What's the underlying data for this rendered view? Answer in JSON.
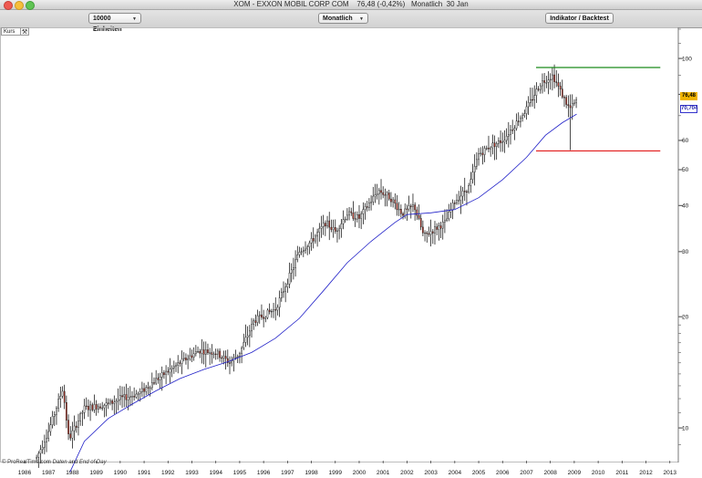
{
  "window": {
    "title": "XOM - EXXON MOBIL CORP COM    76,48 (-0,42%)   Monatlich  30 Jan",
    "traffic_lights": {
      "close": "#ee5a52",
      "minimize": "#f6be3b",
      "zoom": "#60c454"
    }
  },
  "toolbar": {
    "units_select": "10000 Einheiten",
    "period_select": "Monatlich",
    "indicator_button": "Indikator / Backtest"
  },
  "panel": {
    "label": "Kurs",
    "settings_icon": "wrench-icon",
    "footer_source": "© ProRealTime.com",
    "footer_note": "Daten and End of Day"
  },
  "chart_data": {
    "type": "candlestick",
    "symbol": "XOM",
    "period": "Monatlich",
    "y_scale": "log",
    "ylim": [
      8.2,
      120
    ],
    "xlim": [
      1986.0,
      2013.2
    ],
    "y_ticks": [
      10,
      20,
      30,
      40,
      50,
      60,
      80,
      100
    ],
    "x_ticks": [
      "1986",
      "1987",
      "1988",
      "1989",
      "1990",
      "1991",
      "1992",
      "1993",
      "1994",
      "1995",
      "1996",
      "1997",
      "1998",
      "1999",
      "2000",
      "2001",
      "2002",
      "2003",
      "2004",
      "2005",
      "2006",
      "2007",
      "2008",
      "2009",
      "2010",
      "2011",
      "2012",
      "2013"
    ],
    "colors": {
      "up": "#ffffff",
      "down": "#c0392b",
      "wick": "#000000",
      "moving_average": "#2020c8",
      "resistance": "#1a8a1a",
      "support": "#e21a1a",
      "last_price_badge": "#f0b400"
    },
    "price_anchors": [
      [
        1986.5,
        8.3
      ],
      [
        1987.0,
        9.8
      ],
      [
        1987.6,
        12.8
      ],
      [
        1987.85,
        9.3
      ],
      [
        1988.5,
        11.3
      ],
      [
        1989.5,
        11.6
      ],
      [
        1990.0,
        12.0
      ],
      [
        1990.8,
        12.4
      ],
      [
        1991.5,
        13.5
      ],
      [
        1992.5,
        15.0
      ],
      [
        1993.3,
        16.2
      ],
      [
        1994.0,
        16.0
      ],
      [
        1994.6,
        15.0
      ],
      [
        1995.0,
        16.0
      ],
      [
        1995.6,
        19.5
      ],
      [
        1996.5,
        21.0
      ],
      [
        1997.0,
        25.0
      ],
      [
        1997.5,
        30.0
      ],
      [
        1998.0,
        32.0
      ],
      [
        1998.6,
        36.0
      ],
      [
        1999.0,
        34.0
      ],
      [
        1999.5,
        38.0
      ],
      [
        2000.0,
        37.0
      ],
      [
        2000.8,
        44.0
      ],
      [
        2001.3,
        42.0
      ],
      [
        2001.8,
        38.0
      ],
      [
        2002.3,
        40.0
      ],
      [
        2002.7,
        33.0
      ],
      [
        2003.0,
        34.0
      ],
      [
        2003.6,
        36.0
      ],
      [
        2004.0,
        41.0
      ],
      [
        2004.6,
        45.0
      ],
      [
        2005.0,
        55.0
      ],
      [
        2005.5,
        58.0
      ],
      [
        2006.0,
        60.0
      ],
      [
        2006.5,
        66.0
      ],
      [
        2007.0,
        73.0
      ],
      [
        2007.6,
        86.0
      ],
      [
        2008.1,
        90.0
      ],
      [
        2008.4,
        82.0
      ],
      [
        2008.8,
        73.0
      ],
      [
        2009.1,
        76.5
      ]
    ],
    "candle_spike": {
      "date": 2008.8,
      "low": 56.5
    },
    "moving_average": [
      [
        1987.9,
        7.6
      ],
      [
        1988.5,
        9.2
      ],
      [
        1989.5,
        10.6
      ],
      [
        1990.5,
        11.6
      ],
      [
        1991.5,
        12.6
      ],
      [
        1992.5,
        13.6
      ],
      [
        1993.5,
        14.4
      ],
      [
        1994.5,
        15.1
      ],
      [
        1995.5,
        16.0
      ],
      [
        1996.5,
        17.5
      ],
      [
        1997.5,
        19.8
      ],
      [
        1998.5,
        23.5
      ],
      [
        1999.5,
        28.0
      ],
      [
        2000.5,
        32.0
      ],
      [
        2001.5,
        36.0
      ],
      [
        2002.0,
        37.8
      ],
      [
        2003.0,
        38.2
      ],
      [
        2004.0,
        39.0
      ],
      [
        2005.0,
        42.0
      ],
      [
        2006.0,
        47.0
      ],
      [
        2007.0,
        54.0
      ],
      [
        2007.8,
        62.0
      ],
      [
        2008.5,
        67.0
      ],
      [
        2009.1,
        70.7
      ]
    ],
    "resistance_line": {
      "value": 94.5,
      "from": 2007.4,
      "to": 2012.6
    },
    "support_line": {
      "value": 56.2,
      "from": 2007.4,
      "to": 2012.6
    },
    "last_price": {
      "value": 76.48,
      "label": "76,48"
    },
    "moving_average_last": {
      "value": 70.704,
      "label": "70,704"
    }
  }
}
